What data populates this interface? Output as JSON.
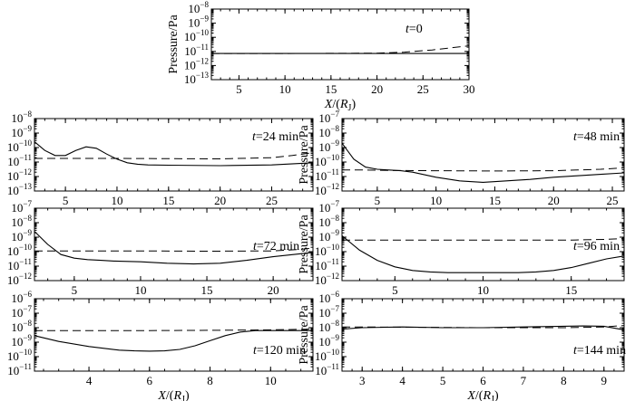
{
  "chart_data": [
    {
      "id": "p0",
      "type": "line",
      "time": "0",
      "ylabel": "Pressure/Pa",
      "xlabel": "X/(RJ)",
      "xlim": [
        2,
        30
      ],
      "xticks": [
        5,
        10,
        15,
        20,
        25,
        30
      ],
      "ylim_exp": [
        -13,
        -8
      ],
      "yticks_exp": [
        -13,
        -12,
        -11,
        -10,
        -9,
        -8
      ],
      "series": [
        {
          "style": "solid",
          "x": [
            2,
            10,
            20,
            30
          ],
          "y_log10": [
            -11.15,
            -11.15,
            -11.15,
            -11.15
          ]
        },
        {
          "style": "dashed",
          "x": [
            2,
            10,
            20,
            23,
            26,
            28,
            30
          ],
          "y_log10": [
            -11.15,
            -11.15,
            -11.12,
            -11.05,
            -10.9,
            -10.75,
            -10.6
          ]
        }
      ]
    },
    {
      "id": "p24",
      "type": "line",
      "time": "24 min",
      "ylabel": "Pressure/Pa",
      "xlabel": "",
      "xlim": [
        2,
        29
      ],
      "xticks": [
        5,
        10,
        15,
        20,
        25
      ],
      "ylim_exp": [
        -13,
        -8
      ],
      "yticks_exp": [
        -13,
        -12,
        -11,
        -10,
        -9,
        -8
      ],
      "series": [
        {
          "style": "solid",
          "x": [
            2,
            3,
            4,
            5,
            6,
            7,
            8,
            9,
            10,
            11,
            12,
            13,
            15,
            20,
            25,
            29
          ],
          "y_log10": [
            -9.6,
            -10.2,
            -10.55,
            -10.55,
            -10.2,
            -9.95,
            -10.05,
            -10.45,
            -10.8,
            -11.05,
            -11.15,
            -11.2,
            -11.22,
            -11.25,
            -11.2,
            -11.05
          ]
        },
        {
          "style": "dashed",
          "x": [
            2,
            10,
            20,
            25,
            27,
            29
          ],
          "y_log10": [
            -10.75,
            -10.75,
            -10.78,
            -10.7,
            -10.55,
            -10.35
          ]
        }
      ]
    },
    {
      "id": "p48",
      "type": "line",
      "time": "48 min",
      "ylabel": "Pressure/Pa",
      "xlabel": "",
      "xlim": [
        2,
        26
      ],
      "xticks": [
        5,
        10,
        15,
        20,
        25
      ],
      "ylim_exp": [
        -12,
        -7
      ],
      "yticks_exp": [
        -12,
        -11,
        -10,
        -9,
        -8,
        -7
      ],
      "series": [
        {
          "style": "solid",
          "x": [
            2,
            3,
            4,
            5,
            6,
            7,
            8,
            10,
            12,
            14,
            16,
            18,
            20,
            22,
            24,
            26
          ],
          "y_log10": [
            -8.7,
            -9.8,
            -10.35,
            -10.5,
            -10.55,
            -10.6,
            -10.7,
            -11.05,
            -11.3,
            -11.4,
            -11.3,
            -11.2,
            -11.05,
            -10.95,
            -10.85,
            -10.75
          ]
        },
        {
          "style": "dashed",
          "x": [
            2,
            4,
            6,
            10,
            15,
            20,
            22,
            24,
            26
          ],
          "y_log10": [
            -10.55,
            -10.55,
            -10.58,
            -10.6,
            -10.62,
            -10.6,
            -10.55,
            -10.5,
            -10.4
          ]
        }
      ]
    },
    {
      "id": "p72",
      "type": "line",
      "time": "72 min",
      "ylabel": "Pressure/Pa",
      "xlabel": "",
      "xlim": [
        2,
        23
      ],
      "xticks": [
        5,
        10,
        15,
        20
      ],
      "ylim_exp": [
        -12,
        -7
      ],
      "yticks_exp": [
        -12,
        -11,
        -10,
        -9,
        -8,
        -7
      ],
      "series": [
        {
          "style": "solid",
          "x": [
            2,
            3,
            4,
            5,
            6,
            7,
            8,
            10,
            12,
            14,
            16,
            18,
            20,
            22,
            23
          ],
          "y_log10": [
            -8.6,
            -9.5,
            -10.2,
            -10.45,
            -10.55,
            -10.6,
            -10.65,
            -10.7,
            -10.8,
            -10.85,
            -10.8,
            -10.6,
            -10.35,
            -10.15,
            -10.05
          ]
        },
        {
          "style": "dashed",
          "x": [
            2,
            5,
            10,
            15,
            20,
            22,
            23
          ],
          "y_log10": [
            -9.95,
            -9.95,
            -9.95,
            -9.97,
            -9.95,
            -9.85,
            -9.75
          ]
        }
      ]
    },
    {
      "id": "p96",
      "type": "line",
      "time": "96 min",
      "ylabel": "Pressure/Pa",
      "xlabel": "",
      "xlim": [
        2,
        18
      ],
      "xticks": [
        5,
        10,
        15
      ],
      "ylim_exp": [
        -12,
        -7
      ],
      "yticks_exp": [
        -12,
        -11,
        -10,
        -9,
        -8,
        -7
      ],
      "series": [
        {
          "style": "solid",
          "x": [
            2,
            3,
            4,
            5,
            6,
            7,
            8,
            10,
            12,
            13,
            14,
            15,
            16,
            17,
            18
          ],
          "y_log10": [
            -8.9,
            -9.9,
            -10.6,
            -11.05,
            -11.3,
            -11.4,
            -11.45,
            -11.45,
            -11.45,
            -11.4,
            -11.3,
            -11.1,
            -10.8,
            -10.5,
            -10.3
          ]
        },
        {
          "style": "dashed",
          "x": [
            2,
            5,
            10,
            15,
            17,
            18
          ],
          "y_log10": [
            -9.2,
            -9.2,
            -9.2,
            -9.2,
            -9.15,
            -9.1
          ]
        }
      ]
    },
    {
      "id": "p120",
      "type": "line",
      "time": "120 min",
      "ylabel": "Pressure/Pa",
      "xlabel": "X/(RJ)",
      "xlim": [
        2.2,
        11.4
      ],
      "xticks": [
        4,
        6,
        8,
        10
      ],
      "ylim_exp": [
        -11,
        -6
      ],
      "yticks_exp": [
        -11,
        -10,
        -9,
        -8,
        -7,
        -6
      ],
      "series": [
        {
          "style": "solid",
          "x": [
            2.2,
            3,
            4,
            5,
            5.5,
            6,
            6.5,
            7,
            7.5,
            8,
            8.5,
            9,
            9.5,
            10,
            10.5,
            11,
            11.4
          ],
          "y_log10": [
            -8.55,
            -8.95,
            -9.3,
            -9.55,
            -9.6,
            -9.62,
            -9.6,
            -9.5,
            -9.25,
            -8.9,
            -8.55,
            -8.3,
            -8.2,
            -8.2,
            -8.2,
            -8.2,
            -8.2
          ]
        },
        {
          "style": "dashed",
          "x": [
            2.2,
            4,
            6,
            8,
            10,
            11.4
          ],
          "y_log10": [
            -8.2,
            -8.2,
            -8.2,
            -8.18,
            -8.15,
            -8.1
          ]
        }
      ]
    },
    {
      "id": "p144",
      "type": "line",
      "time": "144 min",
      "ylabel": "Pressure/Pa",
      "xlabel": "X/(RJ)",
      "xlim": [
        2.5,
        9.5
      ],
      "xticks": [
        3,
        4,
        5,
        6,
        7,
        8,
        9
      ],
      "ylim_exp": [
        -11,
        -6
      ],
      "yticks_exp": [
        -11,
        -10,
        -9,
        -8,
        -7,
        -6
      ],
      "series": [
        {
          "style": "solid",
          "x": [
            2.5,
            3,
            4,
            5,
            6,
            7,
            8,
            8.5,
            9,
            9.5
          ],
          "y_log10": [
            -8.1,
            -8.0,
            -7.95,
            -8.0,
            -8.0,
            -7.95,
            -7.9,
            -7.88,
            -7.9,
            -8.15
          ]
        },
        {
          "style": "dashed",
          "x": [
            2.5,
            3,
            4,
            5,
            6,
            7,
            8,
            9,
            9.5
          ],
          "y_log10": [
            -7.95,
            -7.95,
            -7.97,
            -7.98,
            -8.0,
            -8.0,
            -8.0,
            -7.95,
            -7.85
          ]
        }
      ]
    }
  ]
}
